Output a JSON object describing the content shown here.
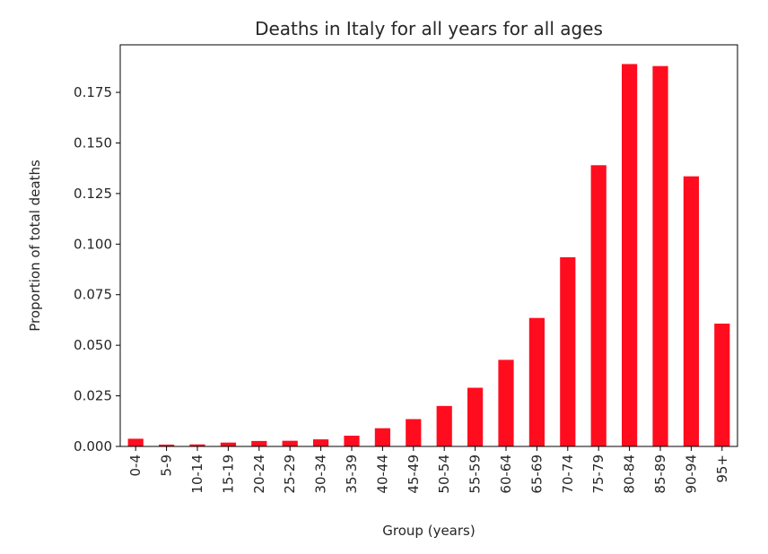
{
  "chart_data": {
    "type": "bar",
    "title": "Deaths in Italy for all years for all ages",
    "xlabel": "Group (years)",
    "ylabel": "Proportion of total deaths",
    "categories": [
      "0-4",
      "5-9",
      "10-14",
      "15-19",
      "20-24",
      "25-29",
      "30-34",
      "35-39",
      "40-44",
      "45-49",
      "50-54",
      "55-59",
      "60-64",
      "65-69",
      "70-74",
      "75-79",
      "80-84",
      "85-89",
      "90-94",
      "95+"
    ],
    "values": [
      0.0038,
      0.0009,
      0.001,
      0.0019,
      0.0027,
      0.0028,
      0.0035,
      0.0053,
      0.009,
      0.0135,
      0.02,
      0.029,
      0.0428,
      0.0635,
      0.0935,
      0.139,
      0.189,
      0.188,
      0.1335,
      0.0607
    ],
    "yticks": [
      0.0,
      0.025,
      0.05,
      0.075,
      0.1,
      0.125,
      0.15,
      0.175
    ],
    "ytick_labels": [
      "0.000",
      "0.025",
      "0.050",
      "0.075",
      "0.100",
      "0.125",
      "0.150",
      "0.175"
    ],
    "ylim": [
      0,
      0.1985
    ],
    "grid": false,
    "legend": "none",
    "bar_color": "#ff0d1f"
  }
}
